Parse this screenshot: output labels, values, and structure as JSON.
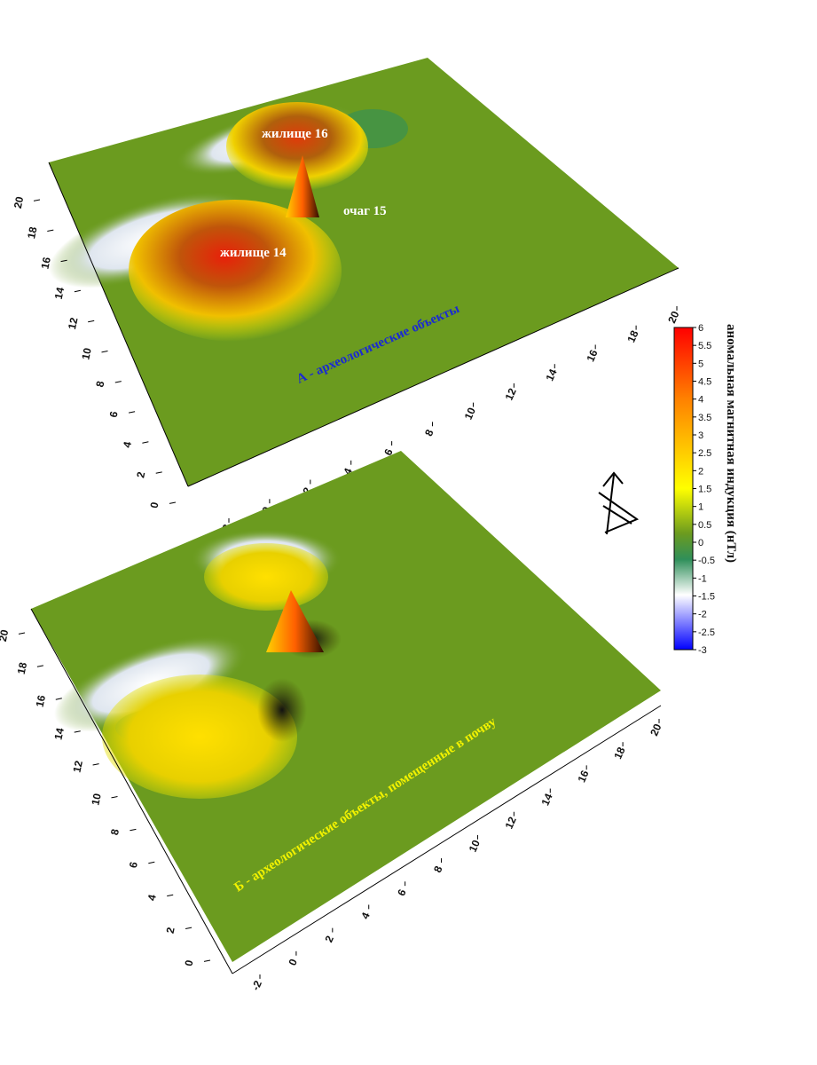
{
  "chart_data": [
    {
      "type": "surface",
      "title": "А - археологические объекты",
      "x_ticks": [
        "-2",
        "0",
        "2",
        "4",
        "6",
        "8",
        "10",
        "12",
        "14",
        "16",
        "18",
        "20"
      ],
      "y_ticks": [
        "0",
        "2",
        "4",
        "6",
        "8",
        "10",
        "12",
        "14",
        "16",
        "18",
        "20"
      ],
      "annotations": [
        "жилище 16",
        "очаг 15",
        "жилище 14"
      ]
    },
    {
      "type": "surface",
      "title": "Б - археологические объекты, помещенные в почву",
      "x_ticks": [
        "-2",
        "0",
        "2",
        "4",
        "6",
        "8",
        "10",
        "12",
        "14",
        "16",
        "18",
        "20"
      ],
      "y_ticks": [
        "0",
        "2",
        "4",
        "6",
        "8",
        "10",
        "12",
        "14",
        "16",
        "18",
        "20"
      ]
    }
  ],
  "colorbar": {
    "title": "аномальная магнитная индукция (нТл)",
    "ticks": [
      "6",
      "5.5",
      "5",
      "4.5",
      "4",
      "3.5",
      "3",
      "2.5",
      "2",
      "1.5",
      "1",
      "0.5",
      "0",
      "-0.5",
      "-1",
      "-1.5",
      "-2",
      "-2.5",
      "-3"
    ],
    "range": [
      -3,
      6
    ],
    "colors": [
      "#ff0000",
      "#ff8000",
      "#ffff00",
      "#6b9b1f",
      "#2f8f5a",
      "#ffffff",
      "#0000ff"
    ]
  },
  "compass_icon": "north-arrow-icon"
}
